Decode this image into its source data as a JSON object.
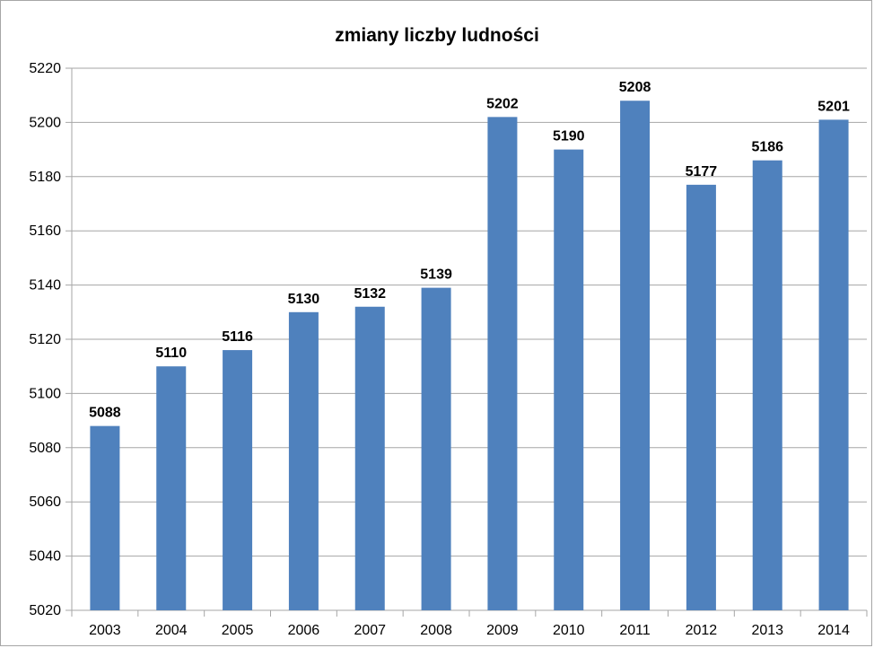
{
  "chart_data": {
    "type": "bar",
    "title": "zmiany liczby ludności",
    "xlabel": "",
    "ylabel": "",
    "categories": [
      "2003",
      "2004",
      "2005",
      "2006",
      "2007",
      "2008",
      "2009",
      "2010",
      "2011",
      "2012",
      "2013",
      "2014"
    ],
    "values": [
      5088,
      5110,
      5116,
      5130,
      5132,
      5139,
      5202,
      5190,
      5208,
      5177,
      5186,
      5201
    ],
    "ylim": [
      5020,
      5220
    ],
    "yticks": [
      5020,
      5040,
      5060,
      5080,
      5100,
      5120,
      5140,
      5160,
      5180,
      5200,
      5220
    ],
    "grid": true,
    "legend": "none",
    "bar_color": "#4f81bd",
    "gridline_color": "#a6a6a6"
  }
}
